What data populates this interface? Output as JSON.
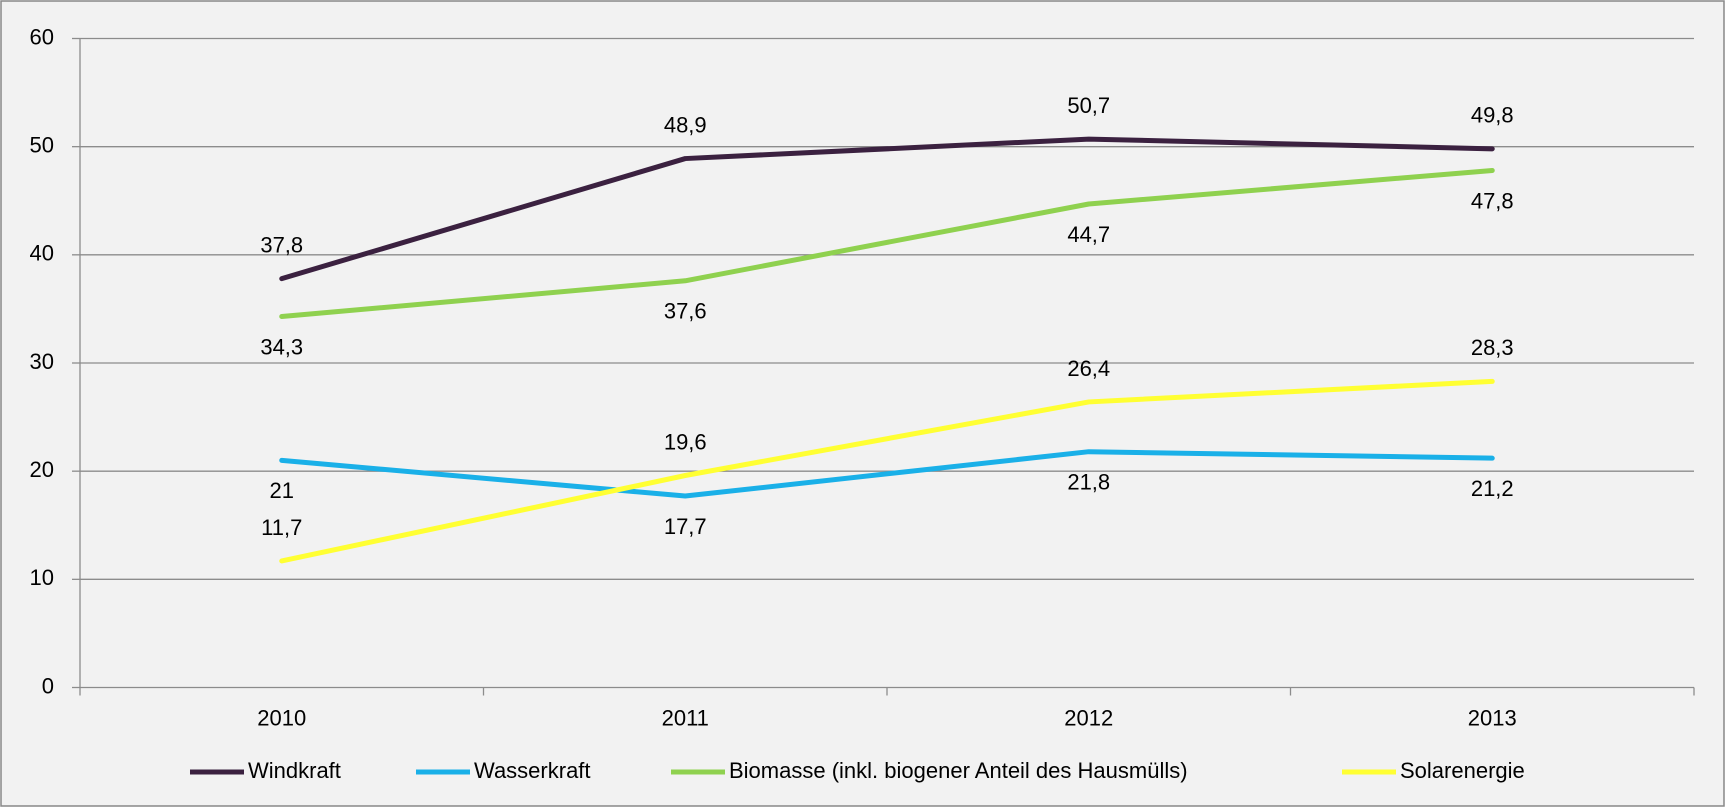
{
  "chart_data": {
    "type": "line",
    "categories": [
      "2010",
      "2011",
      "2012",
      "2013"
    ],
    "series": [
      {
        "name": "Windkraft",
        "color": "#3b2140",
        "values": [
          37.8,
          48.9,
          50.7,
          49.8
        ],
        "value_labels": [
          "37,8",
          "48,9",
          "50,7",
          "49,8"
        ]
      },
      {
        "name": "Wasserkraft",
        "color": "#1ab0e8",
        "values": [
          21,
          17.7,
          21.8,
          21.2
        ],
        "value_labels": [
          "21",
          "17,7",
          "21,8",
          "21,2"
        ]
      },
      {
        "name": "Biomasse (inkl. biogener Anteil des Hausmülls)",
        "color": "#8fd14f",
        "values": [
          34.3,
          37.6,
          44.7,
          47.8
        ],
        "value_labels": [
          "34,3",
          "37,6",
          "44,7",
          "47,8"
        ]
      },
      {
        "name": "Solarenergie",
        "color": "#ffff33",
        "values": [
          11.7,
          19.6,
          26.4,
          28.3
        ],
        "value_labels": [
          "11,7",
          "19,6",
          "26,4",
          "28,3"
        ]
      }
    ],
    "ylim": [
      0,
      60
    ],
    "yticks": [
      0,
      10,
      20,
      30,
      40,
      50,
      60
    ],
    "grid": true,
    "legend": "bottom"
  }
}
